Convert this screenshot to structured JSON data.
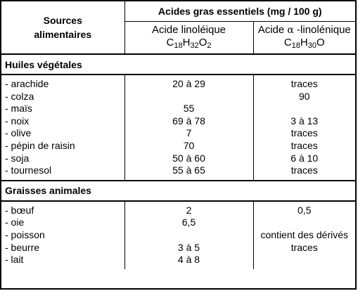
{
  "header": {
    "sources": "Sources alimentaires",
    "sources_line1": "Sources",
    "sources_line2": "alimentaires",
    "main": "Acides gras essentiels (mg / 100 g)",
    "col1_name": "Acide linoléique",
    "col1_formula": {
      "c": "C",
      "c_n": "18",
      "h": "H",
      "h_n": "32",
      "o": "O",
      "o_n": "2"
    },
    "col2_name_prefix": "Acide",
    "col2_alpha": "α",
    "col2_name_suffix": "-linolénique",
    "col2_formula": {
      "c": "C",
      "c_n": "18",
      "h": "H",
      "h_n": "30",
      "o": "O"
    }
  },
  "sections": [
    {
      "title": "Huiles végétales",
      "rows": [
        {
          "name": "- arachide",
          "linoleique": "20 à 29",
          "linolenique": "traces"
        },
        {
          "name": "- colza",
          "linoleique": "",
          "linolenique": "90"
        },
        {
          "name": "- maïs",
          "linoleique": "55",
          "linolenique": ""
        },
        {
          "name": "- noix",
          "linoleique": "69 à 78",
          "linolenique": "3 à 13"
        },
        {
          "name": "- olive",
          "linoleique": "7",
          "linolenique": "traces"
        },
        {
          "name": "- pépin de raisin",
          "linoleique": "70",
          "linolenique": "traces"
        },
        {
          "name": "- soja",
          "linoleique": "50 à 60",
          "linolenique": "6 à 10"
        },
        {
          "name": "- tournesol",
          "linoleique": "55 à 65",
          "linolenique": "traces"
        }
      ]
    },
    {
      "title": "Graisses animales",
      "rows": [
        {
          "name": "- bœuf",
          "linoleique": "2",
          "linolenique": "0,5"
        },
        {
          "name": "- oie",
          "linoleique": "6,5",
          "linolenique": ""
        },
        {
          "name": "- poisson",
          "linoleique": "",
          "linolenique": "contient des dérivés"
        },
        {
          "name": "- beurre",
          "linoleique": "3 à 5",
          "linolenique": "traces"
        },
        {
          "name": "- lait",
          "linoleique": "4 à 8",
          "linolenique": ""
        }
      ]
    }
  ]
}
